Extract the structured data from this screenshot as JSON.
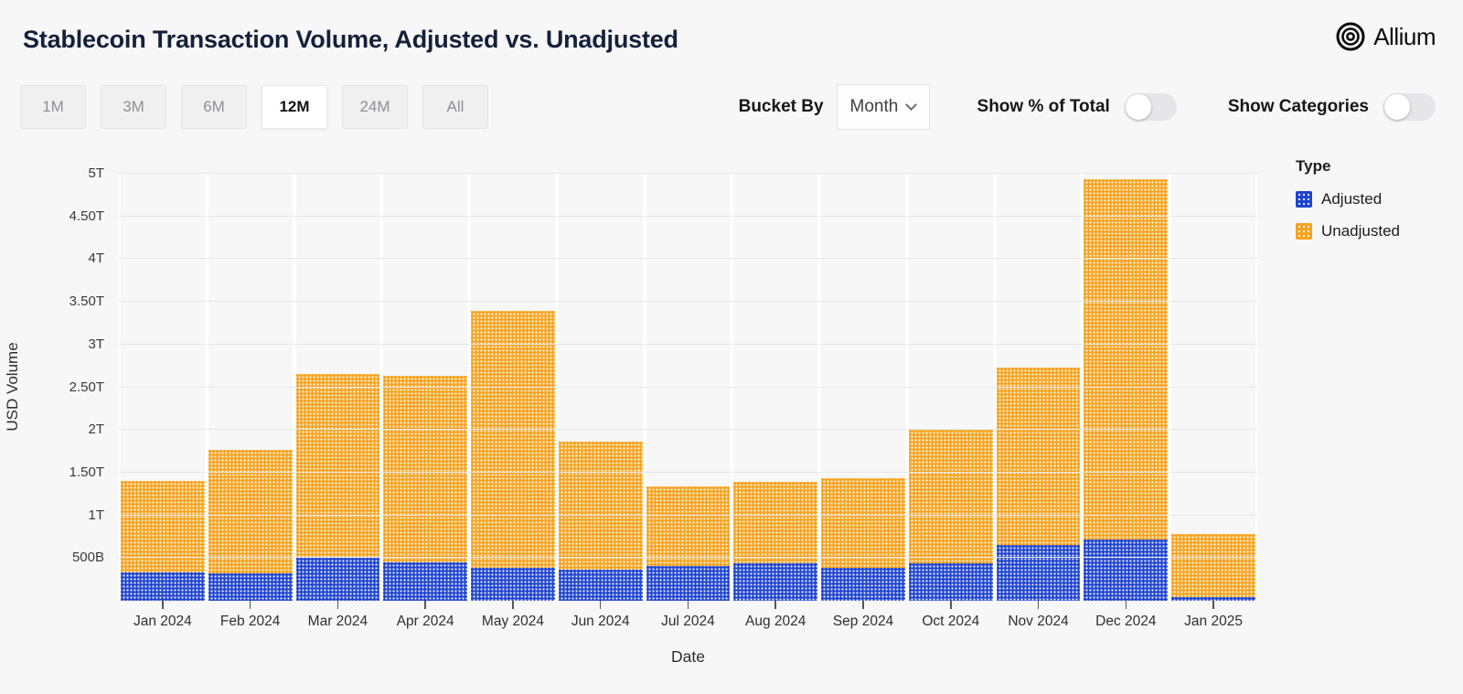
{
  "header": {
    "title": "Stablecoin Transaction Volume, Adjusted vs. Unadjusted",
    "brand": "Allium"
  },
  "controls": {
    "ranges": [
      "1M",
      "3M",
      "6M",
      "12M",
      "24M",
      "All"
    ],
    "selected_range": "12M",
    "bucket_by_label": "Bucket By",
    "bucket_by_value": "Month",
    "toggles": [
      {
        "label": "Show % of Total",
        "on": false
      },
      {
        "label": "Show Categories",
        "on": false
      }
    ]
  },
  "chart_data": {
    "type": "bar",
    "stacked": true,
    "title": "Stablecoin Transaction Volume, Adjusted vs. Unadjusted",
    "xlabel": "Date",
    "ylabel": "USD Volume",
    "units": "trillions of USD",
    "grid": true,
    "legend_title": "Type",
    "legend_position": "right",
    "ylim": [
      0,
      5
    ],
    "yticks": [
      {
        "value": 0.5,
        "label": "500B"
      },
      {
        "value": 1,
        "label": "1T"
      },
      {
        "value": 1.5,
        "label": "1.50T"
      },
      {
        "value": 2,
        "label": "2T"
      },
      {
        "value": 2.5,
        "label": "2.50T"
      },
      {
        "value": 3,
        "label": "3T"
      },
      {
        "value": 3.5,
        "label": "3.50T"
      },
      {
        "value": 4,
        "label": "4T"
      },
      {
        "value": 4.5,
        "label": "4.50T"
      },
      {
        "value": 5,
        "label": "5T"
      }
    ],
    "categories": [
      "Jan 2024",
      "Feb 2024",
      "Mar 2024",
      "Apr 2024",
      "May 2024",
      "Jun 2024",
      "Jul 2024",
      "Aug 2024",
      "Sep 2024",
      "Oct 2024",
      "Nov 2024",
      "Dec 2024",
      "Jan 2025"
    ],
    "series": [
      {
        "name": "Adjusted",
        "color": "#1f44cd",
        "values": [
          0.33,
          0.32,
          0.5,
          0.45,
          0.39,
          0.36,
          0.41,
          0.44,
          0.39,
          0.44,
          0.65,
          0.72,
          0.04
        ]
      },
      {
        "name": "Unadjusted",
        "color": "#f6a31f",
        "values": [
          1.07,
          1.45,
          2.16,
          2.18,
          3.0,
          1.5,
          0.93,
          0.95,
          1.04,
          1.56,
          2.08,
          4.22,
          0.74
        ]
      }
    ]
  }
}
